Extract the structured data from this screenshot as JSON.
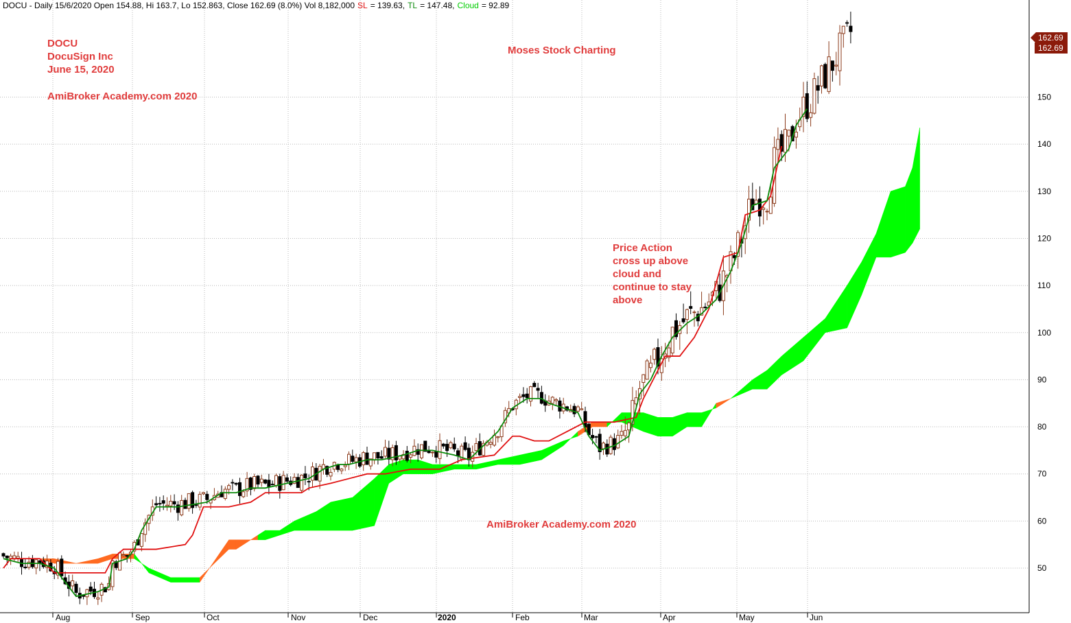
{
  "header": {
    "ticker": "DOCU",
    "info": "DOCU - Daily 15/6/2020 Open 154.88, Hi 163.7, Lo 152.863, Close 162.69 (8.0%) Vol 8,182,000",
    "sl_label": "SL",
    "sl_value": "= 139.63,",
    "tl_label": "TL",
    "tl_value": "= 147.48,",
    "cloud_label": "Cloud",
    "cloud_value": "= 92.89"
  },
  "annotations": {
    "title_lines": [
      "DOCU",
      "DocuSign Inc",
      "June 15, 2020"
    ],
    "brand_top": "AmiBroker Academy.com  2020",
    "author": "Moses Stock Charting",
    "price_action": [
      "Price Action",
      "cross up above",
      "cloud and",
      "continue to stay",
      "above"
    ],
    "brand_bottom": "AmiBroker Academy.com 2020"
  },
  "price_labels": [
    "162.69",
    "162.69"
  ],
  "colors": {
    "tl": "#0a8a0a",
    "sl": "#e01010",
    "cloud_bull": "#00ff00",
    "cloud_bear": "#ff6a20",
    "candle_up": "#8b3a1a",
    "candle_down": "#000000",
    "annotation": "#e03c3c",
    "price_tag": "#8b1a0a"
  },
  "chart_data": {
    "type": "candlestick",
    "title": "DOCU - Daily 15/6/2020",
    "x_ticks": [
      "Aug",
      "Sep",
      "Oct",
      "Nov",
      "Dec",
      "2020",
      "Feb",
      "Mar",
      "Apr",
      "May",
      "Jun"
    ],
    "y_ticks": [
      50,
      60,
      70,
      80,
      90,
      100,
      110,
      120,
      130,
      140,
      150
    ],
    "ylim": [
      40,
      166
    ],
    "last": {
      "open": 154.88,
      "high": 163.7,
      "low": 152.863,
      "close": 162.69,
      "change_pct": 8.0,
      "volume": 8182000
    },
    "grid": true,
    "series": [
      {
        "name": "SL",
        "points": [
          [
            0,
            50
          ],
          [
            2,
            52
          ],
          [
            10,
            52
          ],
          [
            14,
            49
          ],
          [
            28,
            49
          ],
          [
            30,
            52
          ],
          [
            33,
            54
          ],
          [
            42,
            54
          ],
          [
            50,
            55
          ],
          [
            52,
            57
          ],
          [
            55,
            63
          ],
          [
            62,
            63
          ],
          [
            68,
            64
          ],
          [
            72,
            66
          ],
          [
            82,
            66
          ],
          [
            84,
            67
          ],
          [
            90,
            68
          ],
          [
            95,
            69
          ],
          [
            100,
            70
          ],
          [
            105,
            70
          ],
          [
            112,
            71
          ],
          [
            120,
            71
          ],
          [
            126,
            73
          ],
          [
            135,
            74
          ],
          [
            140,
            78
          ],
          [
            142,
            78
          ],
          [
            146,
            77
          ],
          [
            150,
            77
          ],
          [
            155,
            79
          ],
          [
            160,
            81
          ],
          [
            168,
            81
          ],
          [
            174,
            82
          ],
          [
            176,
            86
          ],
          [
            182,
            95
          ],
          [
            186,
            95
          ],
          [
            190,
            99
          ],
          [
            194,
            105
          ],
          [
            198,
            116
          ],
          [
            202,
            117
          ],
          [
            204,
            125
          ],
          [
            208,
            126
          ],
          [
            211,
            129
          ],
          [
            214,
            139.6
          ]
        ]
      },
      {
        "name": "TL",
        "points": [
          [
            0,
            52
          ],
          [
            5,
            51
          ],
          [
            10,
            51
          ],
          [
            14,
            50
          ],
          [
            18,
            46
          ],
          [
            20,
            44
          ],
          [
            26,
            45
          ],
          [
            29,
            46
          ],
          [
            30,
            51
          ],
          [
            34,
            52
          ],
          [
            36,
            54
          ],
          [
            38,
            58
          ],
          [
            42,
            63
          ],
          [
            48,
            63
          ],
          [
            56,
            64
          ],
          [
            60,
            66
          ],
          [
            64,
            66
          ],
          [
            68,
            67
          ],
          [
            72,
            67
          ],
          [
            78,
            68
          ],
          [
            84,
            69
          ],
          [
            88,
            71
          ],
          [
            92,
            72
          ],
          [
            95,
            72
          ],
          [
            100,
            73
          ],
          [
            104,
            73
          ],
          [
            110,
            74
          ],
          [
            114,
            75
          ],
          [
            118,
            75
          ],
          [
            124,
            74
          ],
          [
            128,
            73
          ],
          [
            132,
            76
          ],
          [
            136,
            79
          ],
          [
            140,
            84
          ],
          [
            144,
            86
          ],
          [
            148,
            86
          ],
          [
            150,
            85
          ],
          [
            154,
            84
          ],
          [
            158,
            83
          ],
          [
            161,
            78
          ],
          [
            164,
            75
          ],
          [
            168,
            76
          ],
          [
            172,
            78
          ],
          [
            175,
            87
          ],
          [
            178,
            90
          ],
          [
            181,
            95
          ],
          [
            184,
            99
          ],
          [
            188,
            102
          ],
          [
            192,
            104
          ],
          [
            196,
            107
          ],
          [
            200,
            113
          ],
          [
            203,
            119
          ],
          [
            206,
            127
          ],
          [
            210,
            128
          ],
          [
            212,
            135
          ],
          [
            214,
            137
          ],
          [
            216,
            139
          ],
          [
            218,
            144
          ],
          [
            221,
            147.5
          ]
        ]
      },
      {
        "name": "Cloud A",
        "points": [
          [
            0,
            52
          ],
          [
            10,
            52
          ],
          [
            14,
            51
          ],
          [
            20,
            51
          ],
          [
            26,
            51
          ],
          [
            30,
            52
          ],
          [
            36,
            52
          ],
          [
            40,
            50
          ],
          [
            46,
            48
          ],
          [
            54,
            48
          ],
          [
            62,
            54
          ],
          [
            64,
            54
          ],
          [
            70,
            57
          ],
          [
            72,
            58
          ],
          [
            76,
            58
          ],
          [
            80,
            60
          ],
          [
            86,
            62
          ],
          [
            90,
            64
          ],
          [
            96,
            65
          ],
          [
            102,
            69
          ],
          [
            106,
            72
          ],
          [
            110,
            73
          ],
          [
            114,
            73
          ],
          [
            118,
            72
          ],
          [
            124,
            72
          ],
          [
            130,
            72
          ],
          [
            136,
            73
          ],
          [
            142,
            74
          ],
          [
            148,
            75
          ],
          [
            154,
            77
          ],
          [
            158,
            78
          ],
          [
            162,
            80
          ],
          [
            166,
            80
          ],
          [
            170,
            83
          ],
          [
            176,
            83
          ],
          [
            180,
            82
          ],
          [
            184,
            82
          ],
          [
            188,
            83
          ],
          [
            192,
            83
          ],
          [
            196,
            84
          ],
          [
            200,
            86
          ],
          [
            206,
            90
          ],
          [
            210,
            92
          ],
          [
            214,
            95
          ],
          [
            220,
            99
          ],
          [
            226,
            103
          ],
          [
            232,
            110
          ],
          [
            236,
            115
          ],
          [
            240,
            121
          ],
          [
            244,
            130
          ],
          [
            248,
            131
          ],
          [
            250,
            135
          ],
          [
            252,
            143.5
          ]
        ]
      },
      {
        "name": "Cloud B",
        "points": [
          [
            0,
            52
          ],
          [
            10,
            52
          ],
          [
            14,
            52
          ],
          [
            18,
            51
          ],
          [
            22,
            51
          ],
          [
            26,
            52
          ],
          [
            30,
            53
          ],
          [
            36,
            53
          ],
          [
            40,
            49
          ],
          [
            46,
            47
          ],
          [
            54,
            47
          ],
          [
            62,
            56
          ],
          [
            68,
            56
          ],
          [
            72,
            56
          ],
          [
            76,
            57
          ],
          [
            80,
            58
          ],
          [
            86,
            58
          ],
          [
            90,
            58
          ],
          [
            96,
            58
          ],
          [
            102,
            59
          ],
          [
            106,
            68
          ],
          [
            110,
            70
          ],
          [
            114,
            70
          ],
          [
            118,
            70
          ],
          [
            124,
            71
          ],
          [
            130,
            71
          ],
          [
            136,
            72
          ],
          [
            142,
            72
          ],
          [
            148,
            73
          ],
          [
            154,
            76
          ],
          [
            158,
            79
          ],
          [
            162,
            81
          ],
          [
            166,
            81
          ],
          [
            170,
            81
          ],
          [
            176,
            79
          ],
          [
            180,
            78
          ],
          [
            184,
            78
          ],
          [
            188,
            80
          ],
          [
            192,
            80
          ],
          [
            196,
            85
          ],
          [
            200,
            86
          ],
          [
            206,
            88
          ],
          [
            210,
            88
          ],
          [
            214,
            91
          ],
          [
            220,
            94
          ],
          [
            226,
            100
          ],
          [
            232,
            101
          ],
          [
            236,
            108
          ],
          [
            240,
            116
          ],
          [
            244,
            116
          ],
          [
            248,
            117
          ],
          [
            250,
            119
          ],
          [
            252,
            122
          ]
        ]
      }
    ]
  }
}
